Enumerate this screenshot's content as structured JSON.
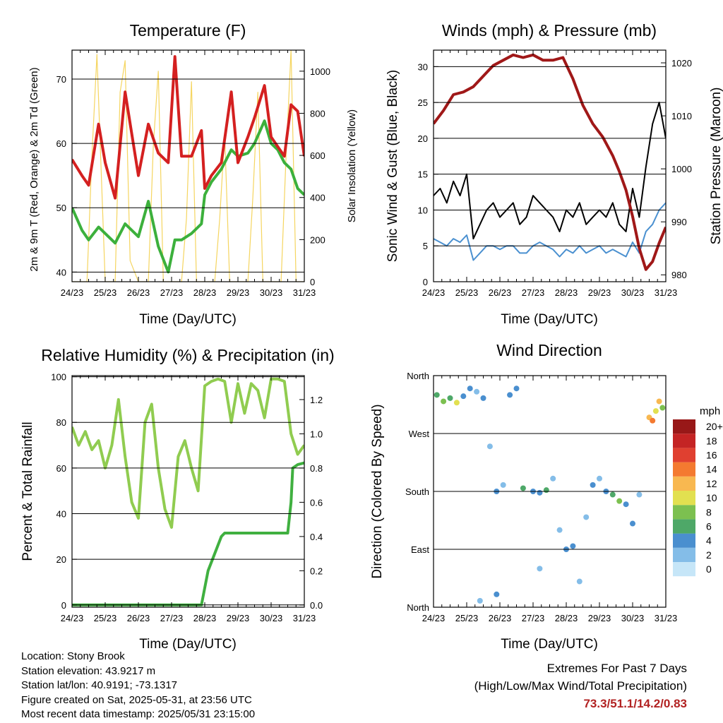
{
  "panels": {
    "temperature": {
      "title": "Temperature (F)",
      "ylabel_left": "2m & 9m T (Red, Orange) & 2m Td (Green)",
      "ylabel_right": "Solar Insolation (Yellow)",
      "xlabel": "Time (Day/UTC)"
    },
    "winds": {
      "title": "Winds (mph) & Pressure (mb)",
      "ylabel_left": "Sonic Wind & Gust (Blue, Black)",
      "ylabel_right": "Station Pressure (Maroon)",
      "xlabel": "Time (Day/UTC)"
    },
    "humidity": {
      "title": "Relative Humidity (%) & Precipitation (in)",
      "ylabel_left": "Percent & Total Rainfall",
      "xlabel": "Time (Day/UTC)"
    },
    "wind_direction": {
      "title": "Wind Direction",
      "ylabel_left": "Direction (Colored By Speed)",
      "xlabel": "Time (Day/UTC)",
      "legend_title": "mph"
    }
  },
  "info": {
    "location": "Location: Stony Brook",
    "elevation": "Station elevation: 43.9217 m",
    "latlon": "Station lat/lon: 40.9191; -73.1317",
    "created": "Figure created on Sat, 2025-05-31, at 23:56 UTC",
    "recent": "Most recent data timestamp: 2025/05/31 23:15:00"
  },
  "extremes": {
    "heading": "Extremes For Past 7 Days",
    "subheading": "(High/Low/Max Wind/Total Precipitation)",
    "values": "73.3/51.1/14.2/0.83"
  },
  "colors": {
    "temp_2m": "#d42020",
    "temp_9m": "#f0a040",
    "dewpoint": "#3cb03c",
    "solar": "#f5d560",
    "wind": "#4a90d0",
    "gust": "#000000",
    "pressure": "#a01818",
    "rh": "#90cc50",
    "precip": "#40b040"
  },
  "chart_data": [
    {
      "id": "temperature",
      "type": "line",
      "title": "Temperature (F)",
      "xlabel": "Time (Day/UTC)",
      "ylabel": "2m & 9m T (Red, Orange) & 2m Td (Green)",
      "ylabel_right": "Solar Insolation (Yellow)",
      "x_ticks": [
        "24/23",
        "25/23",
        "26/23",
        "27/23",
        "28/23",
        "29/23",
        "30/23",
        "31/23"
      ],
      "xlim": [
        0,
        7
      ],
      "ylim": [
        38.5,
        74.5
      ],
      "y_ticks": [
        40,
        50,
        60,
        70
      ],
      "ylim_right": [
        0,
        1100
      ],
      "y_ticks_right": [
        0,
        200,
        400,
        600,
        800,
        1000
      ],
      "gridlines": true,
      "series": [
        {
          "name": "2m T",
          "color": "#d42020",
          "x": [
            0,
            0.3,
            0.5,
            0.8,
            1,
            1.3,
            1.6,
            2,
            2.3,
            2.6,
            2.9,
            3.1,
            3.3,
            3.6,
            3.9,
            4,
            4.2,
            4.5,
            4.8,
            5,
            5.3,
            5.5,
            5.8,
            6,
            6.2,
            6.4,
            6.6,
            6.8,
            7
          ],
          "y": [
            57.5,
            55,
            53.5,
            63,
            57,
            51.5,
            68,
            55,
            63,
            58.5,
            57,
            73.5,
            58,
            58,
            62,
            53,
            55,
            57,
            68,
            57,
            61,
            64,
            69,
            61,
            59.5,
            58,
            66,
            65,
            58
          ]
        },
        {
          "name": "2m Td",
          "color": "#3cb03c",
          "x": [
            0,
            0.3,
            0.5,
            0.8,
            1,
            1.3,
            1.6,
            2,
            2.3,
            2.6,
            2.9,
            3.1,
            3.3,
            3.6,
            3.9,
            4,
            4.2,
            4.5,
            4.8,
            5,
            5.3,
            5.5,
            5.8,
            6,
            6.2,
            6.4,
            6.6,
            6.8,
            7
          ],
          "y": [
            50,
            46.5,
            45,
            47,
            46,
            44.5,
            47.5,
            45.5,
            51,
            44,
            40,
            45,
            45,
            46,
            47.5,
            52,
            54,
            56,
            59,
            58,
            58.5,
            60,
            63.5,
            60,
            59,
            57,
            56,
            53,
            52
          ]
        },
        {
          "name": "Solar",
          "color": "#f5d560",
          "axis": "right",
          "x": [
            0,
            0.15,
            0.3,
            0.45,
            0.6,
            0.75,
            1,
            1.15,
            1.3,
            1.45,
            1.6,
            1.75,
            2,
            2.15,
            2.3,
            2.45,
            2.6,
            2.75,
            3,
            3.15,
            3.3,
            3.45,
            3.6,
            3.75,
            4,
            4.15,
            4.3,
            4.45,
            4.6,
            4.75,
            5,
            5.15,
            5.3,
            5.45,
            5.6,
            5.75,
            6,
            6.15,
            6.3,
            6.45,
            6.6,
            6.75,
            7
          ],
          "y": [
            0,
            0,
            0,
            0,
            600,
            1080,
            0,
            0,
            0,
            900,
            1050,
            100,
            0,
            0,
            0,
            650,
            1000,
            0,
            0,
            0,
            0,
            300,
            950,
            0,
            0,
            0,
            0,
            300,
            700,
            0,
            0,
            0,
            0,
            400,
            900,
            0,
            0,
            0,
            0,
            600,
            1100,
            0,
            0
          ]
        }
      ]
    },
    {
      "id": "winds",
      "type": "line",
      "title": "Winds (mph) & Pressure (mb)",
      "xlabel": "Time (Day/UTC)",
      "ylabel": "Sonic Wind & Gust (Blue, Black)",
      "ylabel_right": "Station Pressure (Maroon)",
      "x_ticks": [
        "24/23",
        "25/23",
        "26/23",
        "27/23",
        "28/23",
        "29/23",
        "30/23",
        "31/23"
      ],
      "xlim": [
        0,
        7
      ],
      "ylim": [
        0,
        32.3
      ],
      "y_ticks": [
        0,
        5,
        10,
        15,
        20,
        25,
        30
      ],
      "ylim_right": [
        978.7,
        1022.4
      ],
      "y_ticks_right": [
        980,
        990,
        1000,
        1010,
        1020
      ],
      "gridlines": true,
      "series": [
        {
          "name": "Pressure",
          "color": "#a01818",
          "axis": "right",
          "x": [
            0,
            0.3,
            0.6,
            0.9,
            1.2,
            1.5,
            1.8,
            2.1,
            2.4,
            2.7,
            3,
            3.3,
            3.6,
            3.9,
            4.2,
            4.5,
            4.8,
            5.1,
            5.4,
            5.6,
            5.8,
            6,
            6.2,
            6.4,
            6.6,
            6.8,
            7
          ],
          "y": [
            1008.5,
            1011,
            1014,
            1014.5,
            1015.5,
            1017.5,
            1019.5,
            1020.5,
            1021.5,
            1021,
            1021.5,
            1020.5,
            1020.5,
            1021,
            1017,
            1012,
            1008.5,
            1006,
            1002.5,
            999.5,
            996,
            991,
            985,
            981,
            982.5,
            986,
            989
          ]
        },
        {
          "name": "Wind",
          "color": "#4a90d0",
          "x": [
            0,
            0.2,
            0.4,
            0.6,
            0.8,
            1,
            1.2,
            1.4,
            1.6,
            1.8,
            2,
            2.2,
            2.4,
            2.6,
            2.8,
            3,
            3.2,
            3.4,
            3.6,
            3.8,
            4,
            4.2,
            4.4,
            4.6,
            4.8,
            5,
            5.2,
            5.4,
            5.6,
            5.8,
            6,
            6.2,
            6.4,
            6.6,
            6.8,
            7
          ],
          "y": [
            6,
            5.5,
            5,
            6,
            5.5,
            6.5,
            3,
            4,
            5,
            5,
            4.5,
            5,
            5,
            4,
            4,
            5,
            5.5,
            5,
            4.5,
            3.5,
            4.5,
            4,
            5,
            4,
            4.5,
            5,
            4,
            4.5,
            4,
            3.5,
            5.5,
            4,
            7,
            8,
            10,
            11
          ]
        },
        {
          "name": "Gust",
          "color": "#000000",
          "x": [
            0,
            0.2,
            0.4,
            0.6,
            0.8,
            1,
            1.2,
            1.4,
            1.6,
            1.8,
            2,
            2.2,
            2.4,
            2.6,
            2.8,
            3,
            3.2,
            3.4,
            3.6,
            3.8,
            4,
            4.2,
            4.4,
            4.6,
            4.8,
            5,
            5.2,
            5.4,
            5.6,
            5.8,
            6,
            6.2,
            6.4,
            6.6,
            6.8,
            7
          ],
          "y": [
            12,
            13,
            11,
            14,
            12,
            15,
            6,
            8,
            10,
            11,
            9,
            10,
            11,
            8,
            9,
            12,
            11,
            10,
            9,
            7,
            10,
            9,
            11,
            8,
            9,
            10,
            9,
            11,
            8,
            7,
            13,
            9,
            16,
            22,
            25,
            20
          ]
        }
      ]
    },
    {
      "id": "humidity",
      "type": "line",
      "title": "Relative Humidity (%) & Precipitation (in)",
      "xlabel": "Time (Day/UTC)",
      "ylabel": "Percent & Total Rainfall",
      "x_ticks": [
        "24/23",
        "25/23",
        "26/23",
        "27/23",
        "28/23",
        "29/23",
        "30/23",
        "31/23"
      ],
      "xlim": [
        0,
        7
      ],
      "ylim": [
        -1,
        100.5
      ],
      "y_ticks": [
        0,
        20,
        40,
        60,
        80,
        100
      ],
      "ylim_right": [
        -0.013,
        1.34
      ],
      "y_ticks_right": [
        0.0,
        0.2,
        0.4,
        0.6,
        0.8,
        1.0,
        1.2
      ],
      "gridlines": true,
      "series": [
        {
          "name": "RH",
          "color": "#90cc50",
          "x": [
            0,
            0.2,
            0.4,
            0.6,
            0.8,
            1,
            1.2,
            1.4,
            1.6,
            1.8,
            2,
            2.2,
            2.4,
            2.6,
            2.8,
            3,
            3.2,
            3.4,
            3.6,
            3.8,
            4,
            4.2,
            4.4,
            4.6,
            4.8,
            5,
            5.2,
            5.4,
            5.6,
            5.8,
            6,
            6.2,
            6.4,
            6.6,
            6.8,
            7
          ],
          "y": [
            78,
            70,
            76,
            68,
            72,
            60,
            70,
            90,
            65,
            45,
            38,
            80,
            88,
            60,
            42,
            34,
            65,
            72,
            60,
            50,
            96,
            98,
            99,
            98,
            80,
            97,
            84,
            97,
            94,
            82,
            99,
            99,
            98,
            75,
            66,
            70
          ]
        },
        {
          "name": "Precipitation",
          "color": "#40b040",
          "axis": "right",
          "x": [
            0,
            3.9,
            4.1,
            4.3,
            4.5,
            4.6,
            5.6,
            6.0,
            6.5,
            6.6,
            6.65,
            6.8,
            7
          ],
          "y": [
            0,
            0,
            0.2,
            0.3,
            0.4,
            0.42,
            0.42,
            0.42,
            0.42,
            0.6,
            0.8,
            0.82,
            0.83
          ]
        }
      ]
    },
    {
      "id": "wind_direction",
      "type": "scatter",
      "title": "Wind Direction",
      "xlabel": "Time (Day/UTC)",
      "ylabel": "Direction (Colored By Speed)",
      "x_ticks": [
        "24/23",
        "25/23",
        "26/23",
        "27/23",
        "28/23",
        "29/23",
        "30/23",
        "31/23"
      ],
      "xlim": [
        0,
        7
      ],
      "y_categories": [
        "North",
        "East",
        "South",
        "West",
        "North"
      ],
      "ylim": [
        0,
        360
      ],
      "legend_title": "mph",
      "legend_labels": [
        "0",
        "2",
        "4",
        "6",
        "8",
        "10",
        "12",
        "14",
        "16",
        "18",
        "20+"
      ],
      "legend_colors": [
        "#c6e6f8",
        "#84bde8",
        "#4a8fcf",
        "#4ea868",
        "#7cc050",
        "#e2e050",
        "#f8b850",
        "#f47a30",
        "#e04030",
        "#c42424",
        "#981818"
      ],
      "gridlines": true,
      "points": [
        {
          "x": 0.1,
          "y": 330,
          "speed": 6
        },
        {
          "x": 0.3,
          "y": 320,
          "speed": 8
        },
        {
          "x": 0.5,
          "y": 325,
          "speed": 6
        },
        {
          "x": 0.7,
          "y": 318,
          "speed": 10
        },
        {
          "x": 0.9,
          "y": 328,
          "speed": 4
        },
        {
          "x": 1.1,
          "y": 340,
          "speed": 4
        },
        {
          "x": 1.3,
          "y": 335,
          "speed": 2
        },
        {
          "x": 1.5,
          "y": 325,
          "speed": 4
        },
        {
          "x": 1.7,
          "y": 250,
          "speed": 2
        },
        {
          "x": 1.9,
          "y": 180,
          "speed": 4
        },
        {
          "x": 2.1,
          "y": 190,
          "speed": 2
        },
        {
          "x": 2.3,
          "y": 330,
          "speed": 4
        },
        {
          "x": 2.5,
          "y": 340,
          "speed": 4
        },
        {
          "x": 2.7,
          "y": 185,
          "speed": 6
        },
        {
          "x": 3.0,
          "y": 180,
          "speed": 4
        },
        {
          "x": 3.2,
          "y": 178,
          "speed": 4
        },
        {
          "x": 3.4,
          "y": 182,
          "speed": 6
        },
        {
          "x": 3.6,
          "y": 200,
          "speed": 2
        },
        {
          "x": 3.8,
          "y": 120,
          "speed": 2
        },
        {
          "x": 4.0,
          "y": 90,
          "speed": 4
        },
        {
          "x": 4.2,
          "y": 95,
          "speed": 4
        },
        {
          "x": 4.4,
          "y": 40,
          "speed": 2
        },
        {
          "x": 4.6,
          "y": 140,
          "speed": 2
        },
        {
          "x": 4.8,
          "y": 190,
          "speed": 4
        },
        {
          "x": 5.0,
          "y": 200,
          "speed": 2
        },
        {
          "x": 5.2,
          "y": 180,
          "speed": 4
        },
        {
          "x": 5.4,
          "y": 175,
          "speed": 6
        },
        {
          "x": 5.6,
          "y": 165,
          "speed": 8
        },
        {
          "x": 5.8,
          "y": 160,
          "speed": 4
        },
        {
          "x": 6.0,
          "y": 130,
          "speed": 4
        },
        {
          "x": 6.2,
          "y": 175,
          "speed": 2
        },
        {
          "x": 6.5,
          "y": 295,
          "speed": 12
        },
        {
          "x": 6.6,
          "y": 290,
          "speed": 14
        },
        {
          "x": 6.7,
          "y": 305,
          "speed": 10
        },
        {
          "x": 6.8,
          "y": 320,
          "speed": 12
        },
        {
          "x": 6.9,
          "y": 310,
          "speed": 8
        },
        {
          "x": 1.4,
          "y": 10,
          "speed": 2
        },
        {
          "x": 1.9,
          "y": 20,
          "speed": 4
        },
        {
          "x": 3.2,
          "y": 60,
          "speed": 2
        }
      ]
    }
  ]
}
